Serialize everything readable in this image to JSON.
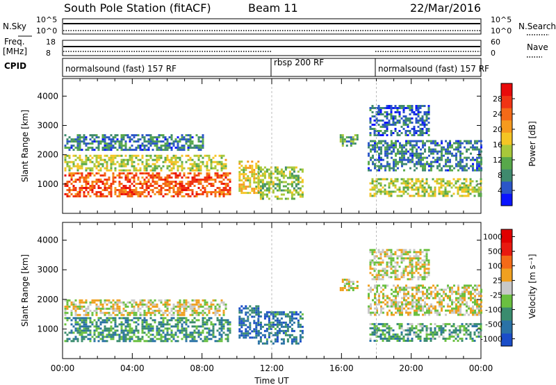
{
  "header": {
    "station": "South Pole Station (fitACF)",
    "beam": "Beam 11",
    "date": "22/Mar/2016"
  },
  "params": {
    "nsky_label": "N.Sky",
    "nsearch_label": "N.Search",
    "left_top_ticks": [
      "10^5",
      "10^0"
    ],
    "right_top_ticks": [
      "10^5",
      "10^0"
    ],
    "freq_label": "Freq.",
    "freq_unit": "[MHz]",
    "freq_ticks": [
      "18",
      "8"
    ],
    "nave_label": "Nave",
    "nave_ticks": [
      "60",
      "0"
    ],
    "cpid_label": "CPID",
    "modes": [
      {
        "label": "normalsound (fast) 157 RF",
        "start": 0
      },
      {
        "label": "rbsp 200 RF",
        "start": 12
      },
      {
        "label": "normalsound (fast) 157 RF",
        "start": 18
      }
    ]
  },
  "chart_data": [
    {
      "type": "heatmap",
      "name": "power",
      "ylabel": "Slant Range [km]",
      "yticks": [
        1000,
        2000,
        3000,
        4000
      ],
      "ylim": [
        0,
        4600
      ],
      "xlim": [
        0,
        24
      ],
      "colorbar": {
        "label": "Power [dB]",
        "ticks": [
          "4",
          "8",
          "12",
          "16",
          "20",
          "24",
          "28"
        ],
        "colors": [
          "#0a14ff",
          "#2b56c8",
          "#3f8a6e",
          "#58a84a",
          "#a8c83a",
          "#f5c524",
          "#f69a1e",
          "#f46a18",
          "#f03414",
          "#e80a0a"
        ]
      },
      "regions": [
        {
          "x": [
            0.1,
            9.6
          ],
          "y": [
            600,
            1400
          ],
          "level": 0.82
        },
        {
          "x": [
            0.1,
            9.4
          ],
          "y": [
            1450,
            2000
          ],
          "level": 0.45
        },
        {
          "x": [
            0.1,
            8.0
          ],
          "y": [
            2200,
            2700
          ],
          "level": 0.2
        },
        {
          "x": [
            10.1,
            11.2
          ],
          "y": [
            700,
            1800
          ],
          "level": 0.55
        },
        {
          "x": [
            11.2,
            13.8
          ],
          "y": [
            500,
            1600
          ],
          "level": 0.4
        },
        {
          "x": [
            15.9,
            16.9
          ],
          "y": [
            2300,
            2700
          ],
          "level": 0.3
        },
        {
          "x": [
            17.6,
            21.0
          ],
          "y": [
            2700,
            3700
          ],
          "level": 0.15
        },
        {
          "x": [
            17.5,
            24.0
          ],
          "y": [
            1500,
            2500
          ],
          "level": 0.2
        },
        {
          "x": [
            17.6,
            24.0
          ],
          "y": [
            600,
            1200
          ],
          "level": 0.45
        }
      ]
    },
    {
      "type": "heatmap",
      "name": "velocity",
      "xlabel": "Time UT",
      "ylabel": "Slant Range [km]",
      "yticks": [
        1000,
        2000,
        3000,
        4000
      ],
      "ylim": [
        0,
        4600
      ],
      "xticks": [
        "00:00",
        "04:00",
        "08:00",
        "12:00",
        "16:00",
        "20:00",
        "00:00"
      ],
      "xlim": [
        0,
        24
      ],
      "colorbar": {
        "label": "Velocity [m s⁻¹]",
        "ticks": [
          "1000",
          "500",
          "100",
          "25",
          "-25",
          "-100",
          "-500",
          "-1000"
        ],
        "colors": [
          "#1a4dc8",
          "#2a72a6",
          "#3a8c6e",
          "#6ac040",
          "#c8c8c8",
          "#f0a020",
          "#f46a18",
          "#e81a10",
          "#e00000"
        ]
      },
      "regions": [
        {
          "x": [
            0.1,
            9.6
          ],
          "y": [
            600,
            1400
          ],
          "level": 0.25
        },
        {
          "x": [
            0.1,
            9.4
          ],
          "y": [
            1450,
            2000
          ],
          "level": 0.5
        },
        {
          "x": [
            10.1,
            11.2
          ],
          "y": [
            700,
            1800
          ],
          "level": 0.1
        },
        {
          "x": [
            11.2,
            13.8
          ],
          "y": [
            500,
            1600
          ],
          "level": 0.15
        },
        {
          "x": [
            15.9,
            16.9
          ],
          "y": [
            2300,
            2700
          ],
          "level": 0.5
        },
        {
          "x": [
            17.6,
            21.0
          ],
          "y": [
            2700,
            3700
          ],
          "level": 0.5
        },
        {
          "x": [
            17.5,
            24.0
          ],
          "y": [
            1500,
            2500
          ],
          "level": 0.5
        },
        {
          "x": [
            17.6,
            24.0
          ],
          "y": [
            600,
            1200
          ],
          "level": 0.3
        }
      ]
    }
  ]
}
